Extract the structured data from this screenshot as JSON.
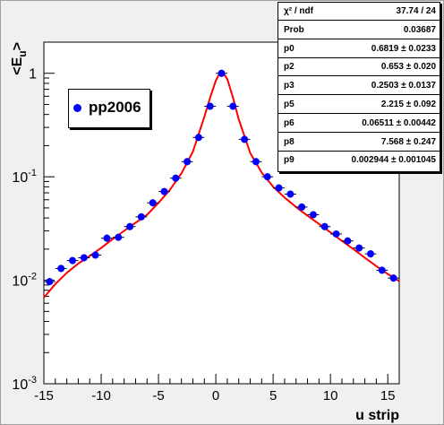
{
  "chart_data": {
    "type": "scatter",
    "title": "",
    "xlabel": "u strip",
    "ylabel": "<E_u>",
    "xlim": [
      -15,
      16
    ],
    "ylim": [
      0.001,
      2
    ],
    "yscale": "log",
    "x_ticks": [
      "-15",
      "-10",
      "-5",
      "0",
      "5",
      "10",
      "15"
    ],
    "x_tick_values": [
      -15,
      -10,
      -5,
      0,
      5,
      10,
      15
    ],
    "y_ticks": [
      {
        "value": 1,
        "mantissa": "1",
        "exponent": ""
      },
      {
        "value": 0.1,
        "mantissa": "10",
        "exponent": "-1"
      },
      {
        "value": 0.01,
        "mantissa": "10",
        "exponent": "-2"
      },
      {
        "value": 0.001,
        "mantissa": "10",
        "exponent": "-3"
      }
    ],
    "grid": false,
    "legend": {
      "entries": [
        "pp2006"
      ],
      "placement": "upper-left"
    },
    "series": [
      {
        "name": "pp2006",
        "marker": "circle",
        "color": "#0000ff",
        "x": [
          -14.5,
          -13.5,
          -12.5,
          -11.5,
          -10.5,
          -9.5,
          -8.5,
          -7.5,
          -6.5,
          -5.5,
          -4.5,
          -3.5,
          -2.5,
          -1.5,
          -0.5,
          0.5,
          1.5,
          2.5,
          3.5,
          4.5,
          5.5,
          6.5,
          7.5,
          8.5,
          9.5,
          10.5,
          11.5,
          12.5,
          13.5,
          14.5,
          15.5
        ],
        "y": [
          0.0097,
          0.013,
          0.0155,
          0.0165,
          0.0175,
          0.0255,
          0.026,
          0.033,
          0.041,
          0.056,
          0.072,
          0.097,
          0.14,
          0.24,
          0.48,
          1.0,
          0.48,
          0.23,
          0.14,
          0.1,
          0.078,
          0.068,
          0.051,
          0.043,
          0.033,
          0.028,
          0.024,
          0.0205,
          0.018,
          0.0125,
          0.0105
        ],
        "xerr": 0.5
      }
    ],
    "fit": {
      "color": "#ff0000",
      "curve_x": [
        -15,
        -14,
        -13,
        -12,
        -11,
        -10,
        -9,
        -8,
        -7,
        -6,
        -5,
        -4,
        -3,
        -2,
        -1,
        -0.5,
        0,
        0.25,
        0.5,
        0.75,
        1,
        1.5,
        2,
        3,
        4,
        5,
        6,
        7,
        8,
        9,
        10,
        11,
        12,
        13,
        14,
        15,
        16
      ],
      "curve_y": [
        0.0068,
        0.0092,
        0.0118,
        0.0145,
        0.0172,
        0.0205,
        0.025,
        0.03,
        0.036,
        0.043,
        0.056,
        0.075,
        0.108,
        0.175,
        0.38,
        0.58,
        0.85,
        0.96,
        1.0,
        0.97,
        0.88,
        0.58,
        0.36,
        0.17,
        0.11,
        0.08,
        0.063,
        0.051,
        0.042,
        0.035,
        0.029,
        0.024,
        0.02,
        0.0165,
        0.0137,
        0.0115,
        0.0098
      ]
    },
    "stats": [
      {
        "name": "χ² / ndf",
        "value": "37.74 / 24"
      },
      {
        "name": "Prob",
        "value": "0.03687"
      },
      {
        "name": "p0",
        "value": "0.6819 ± 0.0233"
      },
      {
        "name": "p2",
        "value": "0.653 ± 0.020"
      },
      {
        "name": "p3",
        "value": "0.2503 ± 0.0137"
      },
      {
        "name": "p5",
        "value": "2.215 ± 0.092"
      },
      {
        "name": "p6",
        "value": "0.06511 ± 0.00442"
      },
      {
        "name": "p8",
        "value": "7.568 ± 0.247"
      },
      {
        "name": "p9",
        "value": "0.002944 ± 0.001045"
      }
    ]
  },
  "legend_label": "pp2006"
}
